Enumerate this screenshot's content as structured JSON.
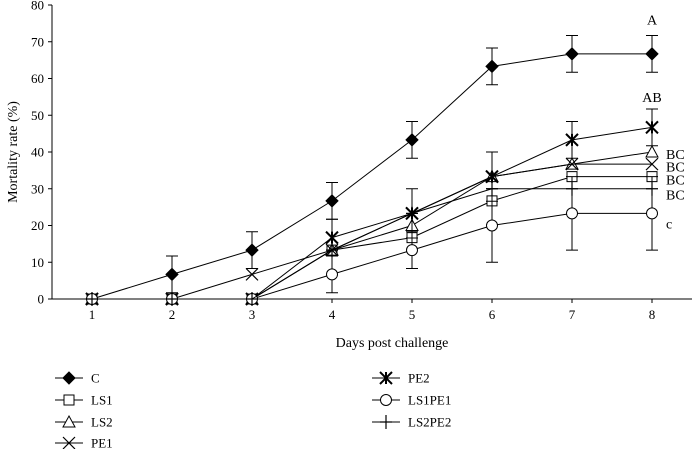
{
  "chart_data": {
    "type": "line",
    "title": "",
    "xlabel": "Days post challenge",
    "ylabel": "Mortality rate (%)",
    "x": [
      1,
      2,
      3,
      4,
      5,
      6,
      7,
      8
    ],
    "xlim": [
      0.5,
      8.5
    ],
    "ylim": [
      0,
      80
    ],
    "yticks": [
      0,
      10,
      20,
      30,
      40,
      50,
      60,
      70,
      80
    ],
    "grid": false,
    "legend_position": "bottom",
    "series": [
      {
        "name": "C",
        "marker": "diamond-filled",
        "values": [
          0,
          6.7,
          13.3,
          26.7,
          43.3,
          63.3,
          66.7,
          66.7
        ],
        "errors": [
          0,
          5,
          5,
          5,
          5,
          5,
          5,
          5
        ]
      },
      {
        "name": "LS1",
        "marker": "square-open",
        "values": [
          0,
          0,
          0,
          13.3,
          16.7,
          26.7,
          33.3,
          33.3
        ],
        "errors": [
          0,
          0,
          0,
          0,
          0,
          0,
          0,
          0
        ]
      },
      {
        "name": "LS2",
        "marker": "triangle-open",
        "values": [
          0,
          0,
          0,
          13.3,
          20,
          33.3,
          36.7,
          40
        ],
        "errors": [
          0,
          0,
          0,
          0,
          0,
          0,
          0,
          0
        ]
      },
      {
        "name": "PE1",
        "marker": "x",
        "values": [
          0,
          0,
          6.7,
          13.3,
          23.3,
          33.3,
          36.7,
          36.7
        ],
        "errors": [
          0,
          0,
          0,
          0,
          0,
          0,
          0,
          0
        ]
      },
      {
        "name": "PE2",
        "marker": "star",
        "values": [
          0,
          0,
          0,
          16.7,
          23.3,
          33.3,
          43.3,
          46.7
        ],
        "errors": [
          0,
          0,
          0,
          5,
          6.7,
          6.7,
          5,
          5
        ]
      },
      {
        "name": "LS1PE1",
        "marker": "circle-open",
        "values": [
          0,
          0,
          0,
          6.7,
          13.3,
          20,
          23.3,
          23.3
        ],
        "errors": [
          0,
          0,
          0,
          5,
          5,
          10,
          10,
          10
        ]
      },
      {
        "name": "LS2PE2",
        "marker": "plus",
        "values": [
          0,
          0,
          0,
          13.3,
          23.3,
          30,
          30,
          30
        ],
        "errors": [
          0,
          0,
          0,
          0,
          0,
          0,
          0,
          0
        ]
      }
    ],
    "annotations": [
      {
        "text": "A",
        "x": 8,
        "y": 76
      },
      {
        "text": "AB",
        "x": 8,
        "y": 55
      },
      {
        "text": "BC",
        "x": 8,
        "y": 39.5
      },
      {
        "text": "BC",
        "x": 8,
        "y": 36
      },
      {
        "text": "BC",
        "x": 8,
        "y": 32.5
      },
      {
        "text": "BC",
        "x": 8,
        "y": 28.5
      },
      {
        "text": "c",
        "x": 8,
        "y": 20.5
      }
    ]
  }
}
